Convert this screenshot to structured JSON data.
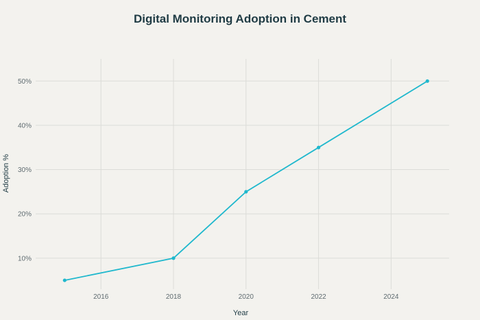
{
  "chart_data": {
    "type": "line",
    "title": "Digital Monitoring Adoption in Cement",
    "xlabel": "Year",
    "ylabel": "Adoption %",
    "x": [
      2015,
      2018,
      2020,
      2022,
      2025
    ],
    "series": [
      {
        "values": [
          5,
          10,
          25,
          35,
          50
        ],
        "color": "#1fb8cd"
      }
    ],
    "xlim": [
      2014.2,
      2025.6
    ],
    "ylim": [
      3,
      55
    ],
    "xticks": [
      2016,
      2018,
      2020,
      2022,
      2024
    ],
    "yticks": [
      10,
      20,
      30,
      40,
      50
    ],
    "ytick_suffix": "%",
    "grid": true,
    "legend": "none"
  }
}
